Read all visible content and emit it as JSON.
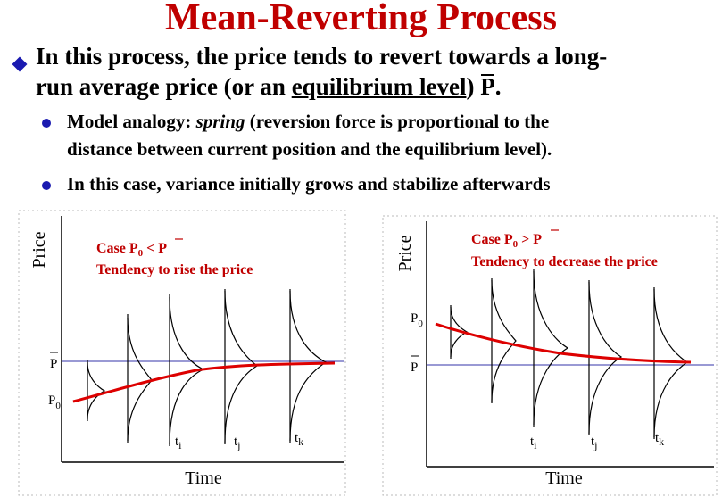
{
  "title": "Mean-Reverting Process",
  "bullet_main": {
    "line1": "In this process, the price tends to revert towards a long-",
    "line2_pre": "run average price  (or an ",
    "line2_underlined": "equilibrium level",
    "line2_mid": ") ",
    "line2_symbol": "P",
    "line2_end": "."
  },
  "sub_bullets": {
    "b1_pre": "Model analogy: ",
    "b1_italic": "spring",
    "b1_post": " (reversion force is proportional to the",
    "b1_line2": "distance between current position and the equilibrium level).",
    "b2": "In this case, variance initially grows and stabilize afterwards"
  },
  "left_chart": {
    "ylabel": "Price",
    "xlabel": "Time",
    "case_prefix": "Case P",
    "case_sub": "0",
    "case_op": " < ",
    "case_bar": "P",
    "tendency": "Tendency to rise the price",
    "pbar_label": "P",
    "p0_label": "P",
    "p0_sub": "0",
    "times": [
      {
        "t": "t",
        "s": "i"
      },
      {
        "t": "t",
        "s": "j"
      },
      {
        "t": "t",
        "s": "k"
      }
    ]
  },
  "right_chart": {
    "ylabel": "Price",
    "xlabel": "Time",
    "case_prefix": "Case  P",
    "case_sub": "0",
    "case_op": " > ",
    "case_bar": "P",
    "tendency": "Tendency to decrease the price",
    "pbar_label": "P",
    "p0_label": "P",
    "p0_sub": "0",
    "times": [
      {
        "t": "t",
        "s": "i"
      },
      {
        "t": "t",
        "s": "j"
      },
      {
        "t": "t",
        "s": "k"
      }
    ]
  },
  "colors": {
    "title": "#c00000",
    "bullet": "#1a1ab0",
    "equilibrium_line": "#3333aa",
    "path": "#dd0000"
  }
}
